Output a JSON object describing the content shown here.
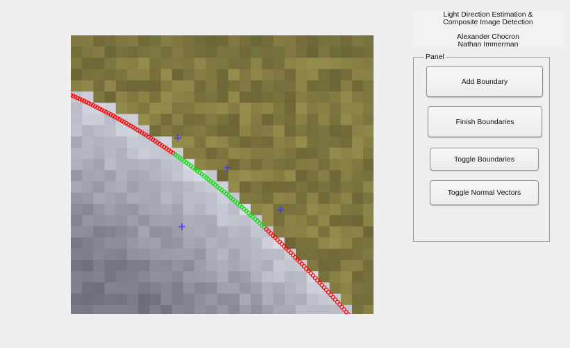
{
  "header": {
    "title_line1": "Light Direction Estimation &",
    "title_line2": "Composite Image Detection",
    "author1": "Alexander Chocron",
    "author2": "Nathan Immerman"
  },
  "panel": {
    "label": "Panel",
    "buttons": {
      "add": "Add Boundary",
      "finish": "Finish Boundaries",
      "toggle_boundaries": "Toggle Boundaries",
      "toggle_normals": "Toggle Normal Vectors"
    }
  },
  "image": {
    "boundary_colors": {
      "unselected": "#ff0000",
      "selected": "#00e000",
      "marker": "#3333ff"
    }
  }
}
